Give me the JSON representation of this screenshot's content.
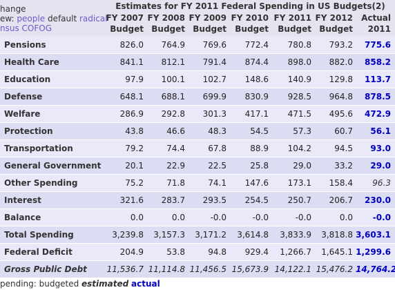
{
  "header": {
    "left": {
      "line1": "hange",
      "line2_prefix": "ew:",
      "line2_links": [
        "people",
        "default",
        "radical"
      ],
      "line3": "nsus COFOG"
    },
    "title": "Estimates for FY 2011 Federal Spending in US Budgets(2)",
    "columns": [
      [
        "FY 2007",
        "Budget"
      ],
      [
        "FY 2008",
        "Budget"
      ],
      [
        "FY 2009",
        "Budget"
      ],
      [
        "FY 2010",
        "Budget"
      ],
      [
        "FY 2011",
        "Budget"
      ],
      [
        "FY 2012",
        "Budget"
      ],
      [
        "Actual",
        "2011"
      ]
    ]
  },
  "table": {
    "rows": [
      {
        "label": "Pensions",
        "cells": [
          "826.0",
          "764.9",
          "769.6",
          "772.4",
          "780.8",
          "793.2",
          "775.6"
        ]
      },
      {
        "label": "Health Care",
        "cells": [
          "841.1",
          "812.1",
          "791.4",
          "874.4",
          "898.0",
          "882.0",
          "858.2"
        ]
      },
      {
        "label": "Education",
        "cells": [
          "97.9",
          "100.1",
          "102.7",
          "148.6",
          "140.9",
          "129.8",
          "113.7"
        ]
      },
      {
        "label": "Defense",
        "cells": [
          "648.1",
          "688.1",
          "699.9",
          "830.9",
          "928.5",
          "964.8",
          "878.5"
        ]
      },
      {
        "label": "Welfare",
        "cells": [
          "286.9",
          "292.8",
          "301.3",
          "417.1",
          "471.5",
          "495.6",
          "472.9"
        ]
      },
      {
        "label": "Protection",
        "cells": [
          "43.8",
          "46.6",
          "48.3",
          "54.5",
          "57.3",
          "60.7",
          "56.1"
        ]
      },
      {
        "label": "Transportation",
        "cells": [
          "79.2",
          "74.4",
          "67.8",
          "88.9",
          "104.2",
          "94.5",
          "93.0"
        ]
      },
      {
        "label": "General Government",
        "cells": [
          "20.1",
          "22.9",
          "22.5",
          "25.8",
          "29.0",
          "33.2",
          "29.0"
        ]
      },
      {
        "label": "Other Spending",
        "cells": [
          "75.2",
          "71.8",
          "74.1",
          "147.6",
          "173.1",
          "158.4",
          "96.3"
        ],
        "actual_estimated": true
      },
      {
        "label": "Interest",
        "cells": [
          "321.6",
          "283.7",
          "293.5",
          "254.5",
          "250.7",
          "206.7",
          "230.0"
        ]
      },
      {
        "label": "Balance",
        "cells": [
          "0.0",
          "0.0",
          "-0.0",
          "-0.0",
          "-0.0",
          "0.0",
          "-0.0"
        ]
      },
      {
        "label": "Total Spending",
        "cells": [
          "3,239.8",
          "3,157.3",
          "3,171.2",
          "3,614.8",
          "3,833.9",
          "3,818.8",
          "3,603.1"
        ]
      },
      {
        "label": "Federal Deficit",
        "cells": [
          "204.9",
          "53.8",
          "94.8",
          "929.4",
          "1,266.7",
          "1,645.1",
          "1,299.6"
        ]
      },
      {
        "label": "Gross Public Debt",
        "cells": [
          "11,536.7",
          "11,114.8",
          "11,456.5",
          "15,673.9",
          "14,122.1",
          "15,476.2",
          "14,764.2"
        ],
        "italic": true
      }
    ]
  },
  "footer": {
    "prefix": "pending: budgeted",
    "estimated": "estimated",
    "actual": "actual"
  }
}
